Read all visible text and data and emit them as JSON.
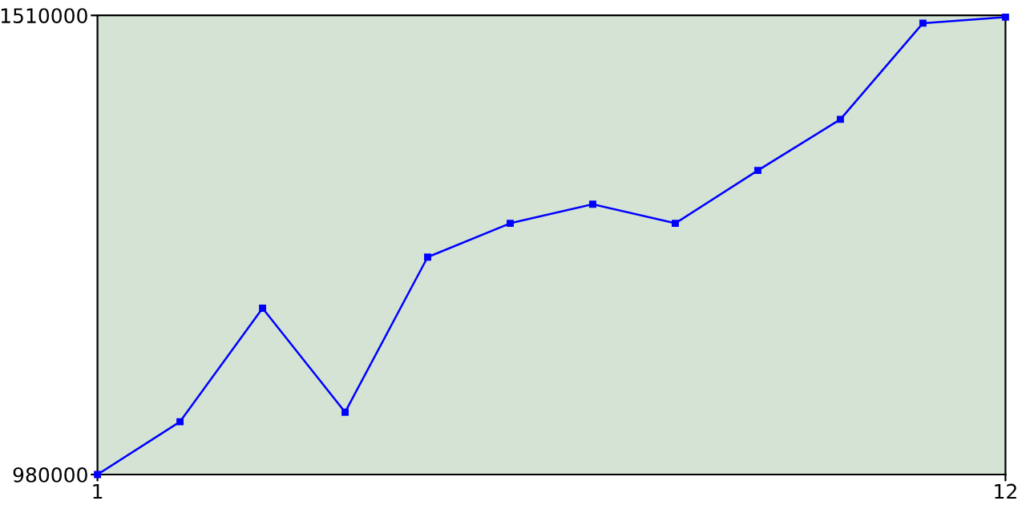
{
  "chart_data": {
    "type": "line",
    "x": [
      1,
      2,
      3,
      4,
      5,
      6,
      7,
      8,
      9,
      10,
      11,
      12
    ],
    "series": [
      {
        "color": "#0000ff",
        "values": [
          980000,
          1041000,
          1172000,
          1052000,
          1231000,
          1270000,
          1292000,
          1270000,
          1331000,
          1390000,
          1501000,
          1508000
        ]
      }
    ],
    "xlim": [
      1,
      12
    ],
    "xticks": [
      1,
      12
    ],
    "ylim": [
      980000,
      1510000
    ],
    "yticks": [
      980000,
      1510000
    ],
    "grid": false,
    "legend": false,
    "marker": "square",
    "line_style": "solid"
  }
}
